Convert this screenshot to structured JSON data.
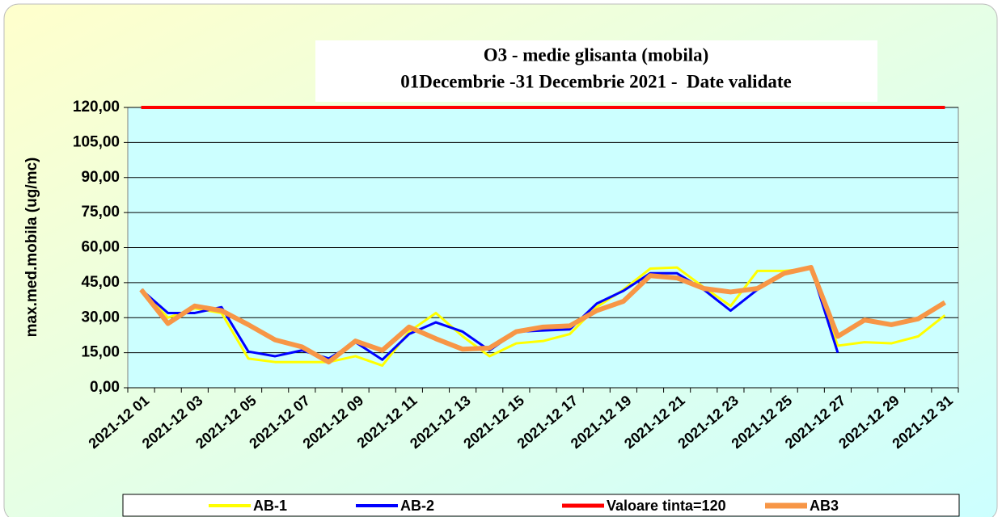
{
  "chart_data": {
    "type": "line",
    "title": "O3 - medie glisanta (mobila)",
    "subtitle": "01Decembrie -31 Decembrie 2021 -  Date validate",
    "ylabel": "max.med.mobila (ug/mc)",
    "categories": [
      "2021-12 01",
      null,
      "2021-12 03",
      null,
      "2021-12 05",
      null,
      "2021-12 07",
      null,
      "2021-12 09",
      null,
      "2021-12 11",
      null,
      "2021-12 13",
      null,
      "2021-12 15",
      null,
      "2021-12 17",
      null,
      "2021-12 19",
      null,
      "2021-12 21",
      null,
      "2021-12 23",
      null,
      "2021-12 25",
      null,
      "2021-12 27",
      null,
      "2021-12 29",
      null,
      "2021-12 31"
    ],
    "series": [
      {
        "name": "AB-1",
        "color": "#ffff00",
        "values": [
          42,
          30,
          34,
          32,
          12.5,
          11,
          11,
          11,
          13.5,
          9.5,
          24,
          32,
          22,
          13.5,
          19,
          20,
          23,
          34.5,
          42,
          51,
          51.5,
          43,
          35,
          50,
          50,
          51,
          18,
          19.5,
          19,
          22,
          31
        ]
      },
      {
        "name": "AB-2",
        "color": "#0000ff",
        "values": [
          42,
          32,
          32,
          34.5,
          15.5,
          13.5,
          16,
          12.5,
          19.5,
          12,
          23,
          28,
          24,
          16,
          24,
          24.5,
          25,
          36,
          41.5,
          49,
          49,
          42,
          33,
          42,
          49,
          51.5,
          15,
          null,
          null,
          null,
          null
        ]
      },
      {
        "name": "Valoare tinta=120",
        "color": "#ff0000",
        "values": [
          120,
          120,
          120,
          120,
          120,
          120,
          120,
          120,
          120,
          120,
          120,
          120,
          120,
          120,
          120,
          120,
          120,
          120,
          120,
          120,
          120,
          120,
          120,
          120,
          120,
          120,
          120,
          120,
          120,
          120,
          120
        ]
      },
      {
        "name": "AB3",
        "color": "#f79646",
        "values": [
          42,
          27.5,
          35,
          33,
          27,
          20.5,
          17.5,
          11,
          20,
          16,
          26,
          21,
          16.5,
          17,
          24,
          26,
          26.5,
          33,
          37,
          48,
          47,
          42.5,
          41,
          42.5,
          49,
          51.5,
          22,
          29,
          27,
          29.5,
          36.5
        ]
      }
    ],
    "ylim": [
      0,
      120
    ],
    "yticks": [
      {
        "value": 0,
        "label": "0,00"
      },
      {
        "value": 15,
        "label": "15,00"
      },
      {
        "value": 30,
        "label": "30,00"
      },
      {
        "value": 45,
        "label": "45,00"
      },
      {
        "value": 60,
        "label": "60,00"
      },
      {
        "value": 75,
        "label": "75,00"
      },
      {
        "value": 90,
        "label": "90,00"
      },
      {
        "value": 105,
        "label": "105,00"
      },
      {
        "value": 120,
        "label": "120,00"
      }
    ],
    "grid": true,
    "legend": "bottom"
  }
}
